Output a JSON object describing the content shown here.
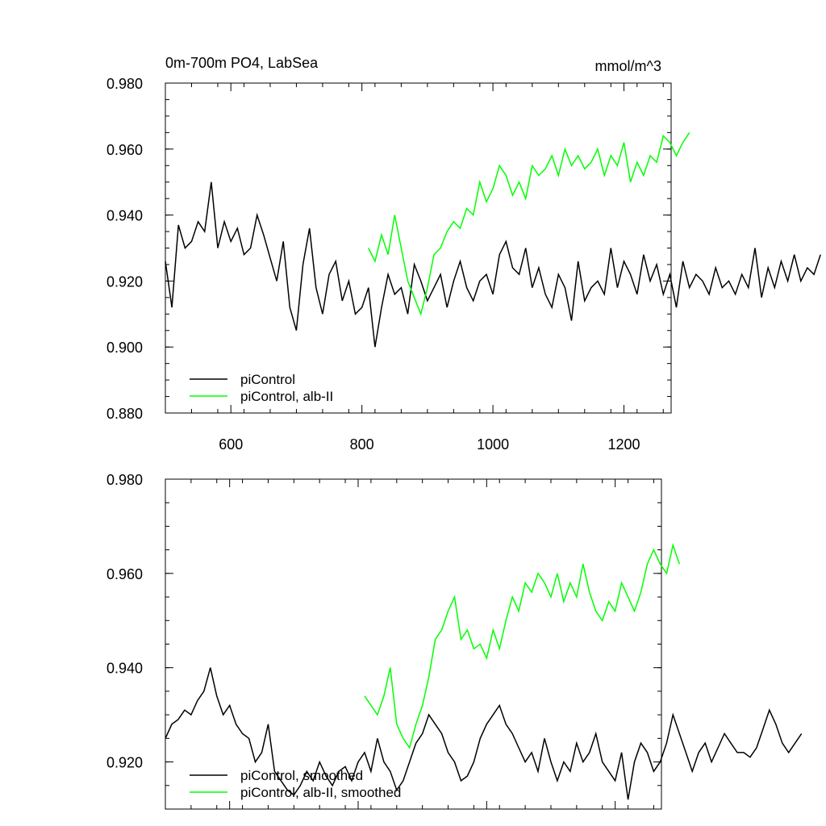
{
  "colors": {
    "control": "#000000",
    "alb": "#00ff00"
  },
  "chart_data": [
    {
      "type": "line",
      "title": "0m-700m PO4, LabSea",
      "units": "mmol/m^3",
      "xlim": [
        500,
        1272
      ],
      "ylim": [
        0.88,
        0.98
      ],
      "xticks": [
        600,
        800,
        1000,
        1200
      ],
      "xtick_labels": [
        "600",
        "800",
        "1000",
        "1200"
      ],
      "yticks": [
        0.88,
        0.9,
        0.92,
        0.94,
        0.96,
        0.98
      ],
      "ytick_labels": [
        "0.880",
        "0.900",
        "0.920",
        "0.940",
        "0.960",
        "0.980"
      ],
      "legend": {
        "position": "bottom-left",
        "entries": [
          "piControl",
          "piControl, alb-II"
        ]
      },
      "series": [
        {
          "name": "piControl",
          "color": "#000000",
          "x_start": 500,
          "x_step": 10,
          "values": [
            0.926,
            0.912,
            0.937,
            0.93,
            0.932,
            0.938,
            0.935,
            0.95,
            0.93,
            0.938,
            0.932,
            0.936,
            0.928,
            0.93,
            0.94,
            0.934,
            0.927,
            0.92,
            0.932,
            0.912,
            0.905,
            0.925,
            0.936,
            0.918,
            0.91,
            0.922,
            0.926,
            0.914,
            0.92,
            0.91,
            0.912,
            0.918,
            0.9,
            0.912,
            0.922,
            0.916,
            0.918,
            0.91,
            0.925,
            0.92,
            0.914,
            0.918,
            0.922,
            0.912,
            0.92,
            0.926,
            0.918,
            0.914,
            0.92,
            0.922,
            0.916,
            0.928,
            0.932,
            0.924,
            0.922,
            0.93,
            0.918,
            0.924,
            0.916,
            0.912,
            0.922,
            0.918,
            0.908,
            0.926,
            0.914,
            0.918,
            0.92,
            0.916,
            0.93,
            0.918,
            0.926,
            0.922,
            0.916,
            0.928,
            0.92,
            0.925,
            0.916,
            0.922,
            0.912,
            0.926,
            0.918,
            0.922,
            0.92,
            0.916,
            0.924,
            0.918,
            0.92,
            0.916,
            0.922,
            0.918,
            0.93,
            0.915,
            0.924,
            0.918,
            0.926,
            0.92,
            0.928,
            0.92,
            0.924,
            0.922,
            0.928
          ]
        },
        {
          "name": "piControl, alb-II",
          "color": "#00ff00",
          "x_start": 810,
          "x_step": 10,
          "values": [
            0.93,
            0.926,
            0.934,
            0.928,
            0.94,
            0.93,
            0.92,
            0.915,
            0.91,
            0.918,
            0.928,
            0.93,
            0.935,
            0.938,
            0.936,
            0.942,
            0.94,
            0.95,
            0.944,
            0.948,
            0.955,
            0.952,
            0.946,
            0.95,
            0.945,
            0.955,
            0.952,
            0.954,
            0.958,
            0.952,
            0.96,
            0.955,
            0.958,
            0.954,
            0.956,
            0.96,
            0.952,
            0.958,
            0.955,
            0.962,
            0.95,
            0.956,
            0.952,
            0.958,
            0.956,
            0.964,
            0.962,
            0.958,
            0.962,
            0.965
          ]
        }
      ]
    },
    {
      "type": "line",
      "xlim": [
        500,
        1272
      ],
      "ylim": [
        0.91,
        0.98
      ],
      "xticks": [
        600,
        800,
        1000,
        1200
      ],
      "yticks": [
        0.92,
        0.94,
        0.96,
        0.98
      ],
      "ytick_labels": [
        "0.920",
        "0.940",
        "0.960",
        "0.980"
      ],
      "legend": {
        "position": "bottom-left",
        "entries": [
          "piControl, smoothed",
          "piControl, alb-II, smoothed"
        ]
      },
      "series": [
        {
          "name": "piControl, smoothed",
          "color": "#000000",
          "x_start": 500,
          "x_step": 10,
          "values": [
            0.925,
            0.928,
            0.929,
            0.931,
            0.93,
            0.933,
            0.935,
            0.94,
            0.934,
            0.93,
            0.932,
            0.928,
            0.926,
            0.925,
            0.92,
            0.922,
            0.928,
            0.918,
            0.916,
            0.914,
            0.913,
            0.915,
            0.918,
            0.916,
            0.92,
            0.917,
            0.915,
            0.918,
            0.919,
            0.916,
            0.92,
            0.922,
            0.918,
            0.925,
            0.92,
            0.918,
            0.914,
            0.916,
            0.92,
            0.924,
            0.926,
            0.93,
            0.928,
            0.926,
            0.922,
            0.92,
            0.916,
            0.917,
            0.92,
            0.925,
            0.928,
            0.93,
            0.932,
            0.928,
            0.926,
            0.923,
            0.92,
            0.922,
            0.918,
            0.925,
            0.92,
            0.916,
            0.92,
            0.918,
            0.924,
            0.92,
            0.922,
            0.926,
            0.92,
            0.918,
            0.916,
            0.922,
            0.912,
            0.92,
            0.924,
            0.922,
            0.918,
            0.92,
            0.924,
            0.93,
            0.926,
            0.922,
            0.918,
            0.922,
            0.924,
            0.92,
            0.923,
            0.926,
            0.924,
            0.922,
            0.922,
            0.921,
            0.923,
            0.927,
            0.931,
            0.928,
            0.924,
            0.922,
            0.924,
            0.926
          ]
        },
        {
          "name": "piControl, alb-II, smoothed",
          "color": "#00ff00",
          "x_start": 810,
          "x_step": 10,
          "values": [
            0.934,
            0.932,
            0.93,
            0.934,
            0.94,
            0.928,
            0.925,
            0.923,
            0.928,
            0.932,
            0.938,
            0.946,
            0.948,
            0.952,
            0.955,
            0.946,
            0.948,
            0.944,
            0.945,
            0.942,
            0.948,
            0.944,
            0.95,
            0.955,
            0.952,
            0.958,
            0.956,
            0.96,
            0.958,
            0.955,
            0.96,
            0.954,
            0.958,
            0.955,
            0.962,
            0.956,
            0.952,
            0.95,
            0.954,
            0.952,
            0.958,
            0.955,
            0.952,
            0.956,
            0.962,
            0.965,
            0.962,
            0.96,
            0.966,
            0.962
          ]
        }
      ]
    }
  ]
}
